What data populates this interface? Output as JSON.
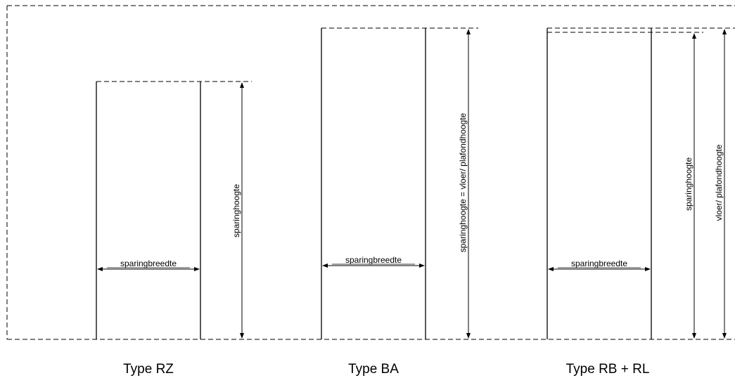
{
  "types": [
    {
      "title": "Type RZ",
      "width_label": "sparingbreedte",
      "height_label": "sparinghoogte"
    },
    {
      "title": "Type BA",
      "width_label": "sparingbreedte",
      "height_label": "sparinghoogte = vloer/ plafondhoogte"
    },
    {
      "title": "Type RB + RL",
      "width_label": "sparingbreedte",
      "height_label": "sparinghoogte",
      "height_label_2": "vloer/ plafondhoogte"
    }
  ]
}
